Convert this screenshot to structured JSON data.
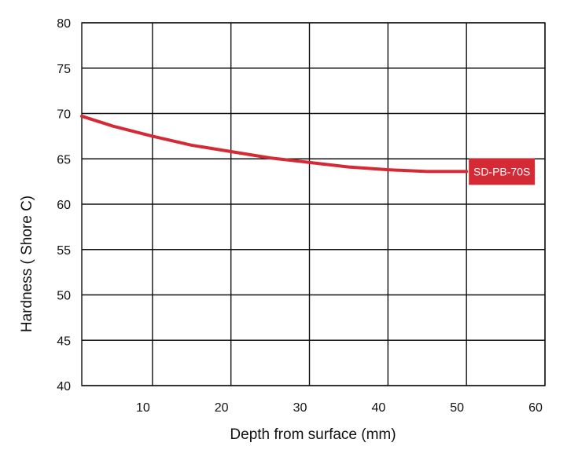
{
  "chart_data": {
    "type": "line",
    "xlabel": "Depth from surface (mm)",
    "ylabel": "Hardness ( Shore C)",
    "xlim": [
      1,
      60
    ],
    "ylim": [
      40,
      80
    ],
    "x_ticks": [
      10,
      20,
      30,
      40,
      50,
      60
    ],
    "y_ticks": [
      40,
      45,
      50,
      55,
      60,
      65,
      70,
      75,
      80
    ],
    "grid": true,
    "series": [
      {
        "name": "SD-PB-70S",
        "color": "#d42a35",
        "x": [
          1,
          5,
          10,
          15,
          20,
          25,
          30,
          35,
          40,
          45,
          50
        ],
        "y": [
          69.7,
          68.6,
          67.5,
          66.5,
          65.8,
          65.1,
          64.6,
          64.1,
          63.8,
          63.6,
          63.6
        ]
      }
    ]
  }
}
